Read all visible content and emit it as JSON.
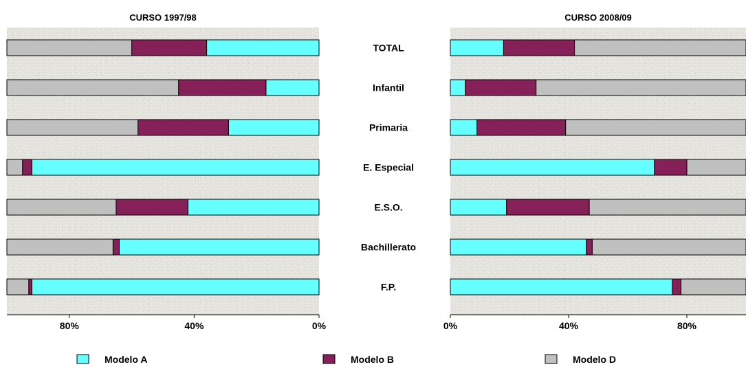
{
  "colors": {
    "Modelo A": "#66FFFF",
    "Modelo B": "#862058",
    "Modelo D": "#C0C0C0",
    "plot_bg": "#E4E2DD",
    "border": "#000000"
  },
  "chart_data": [
    {
      "type": "bar",
      "orientation": "horizontal",
      "stacked": true,
      "x_reversed": true,
      "title": "CURSO 1997/98",
      "categories": [
        "TOTAL",
        "Infantil",
        "Primaria",
        "E. Especial",
        "E.S.O.",
        "Bachillerato",
        "F.P."
      ],
      "series": [
        {
          "name": "Modelo A",
          "values": [
            36,
            17,
            29,
            92,
            42,
            64,
            92
          ]
        },
        {
          "name": "Modelo B",
          "values": [
            24,
            28,
            29,
            3,
            23,
            2,
            1
          ]
        },
        {
          "name": "Modelo D",
          "values": [
            40,
            55,
            42,
            5,
            35,
            34,
            7
          ]
        }
      ],
      "xlim": [
        0,
        100
      ],
      "ticks": [
        {
          "value": 80,
          "label": "80%"
        },
        {
          "value": 40,
          "label": "40%"
        },
        {
          "value": 0,
          "label": "0%"
        }
      ]
    },
    {
      "type": "bar",
      "orientation": "horizontal",
      "stacked": true,
      "x_reversed": false,
      "title": "CURSO 2008/09",
      "categories": [
        "TOTAL",
        "Infantil",
        "Primaria",
        "E. Especial",
        "E.S.O.",
        "Bachillerato",
        "F.P."
      ],
      "series": [
        {
          "name": "Modelo A",
          "values": [
            18,
            5,
            9,
            69,
            19,
            46,
            75
          ]
        },
        {
          "name": "Modelo B",
          "values": [
            24,
            24,
            30,
            11,
            28,
            2,
            3
          ]
        },
        {
          "name": "Modelo D",
          "values": [
            58,
            71,
            61,
            20,
            53,
            52,
            22
          ]
        }
      ],
      "xlim": [
        0,
        100
      ],
      "ticks": [
        {
          "value": 0,
          "label": "0%"
        },
        {
          "value": 40,
          "label": "40%"
        },
        {
          "value": 80,
          "label": "80%"
        }
      ]
    }
  ],
  "legend": [
    {
      "name": "Modelo A",
      "label": "Modelo A"
    },
    {
      "name": "Modelo B",
      "label": "Modelo B"
    },
    {
      "name": "Modelo D",
      "label": "Modelo D"
    }
  ]
}
